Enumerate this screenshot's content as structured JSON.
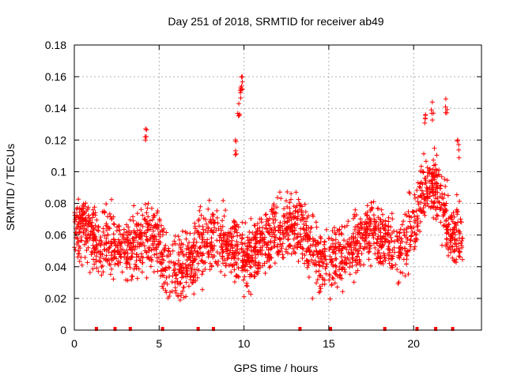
{
  "chart_data": {
    "type": "scatter",
    "title": "Day 251 of 2018, SRMTID for receiver ab49",
    "xlabel": "GPS time / hours",
    "ylabel": "SRMTID / TECUs",
    "xlim": [
      0,
      24.0
    ],
    "ylim": [
      0,
      0.18
    ],
    "grid": true,
    "marker": "+",
    "color": "#ff0000",
    "x_ticks": [
      0,
      5,
      10,
      15,
      20
    ],
    "x_tick_labels": [
      "0",
      "5",
      "10",
      "15",
      "20"
    ],
    "y_ticks": [
      0,
      0.02,
      0.04,
      0.06,
      0.08,
      0.1,
      0.12,
      0.14,
      0.16,
      0.18
    ],
    "y_tick_labels": [
      "0",
      "0.02",
      "0.04",
      "0.06",
      "0.08",
      "0.1",
      "0.12",
      "0.14",
      "0.16",
      "0.18"
    ],
    "series": [
      {
        "name": "SRMTID",
        "x_range": [
          0,
          22.9
        ],
        "trend": [
          {
            "x": 0.0,
            "y": 0.062
          },
          {
            "x": 0.5,
            "y": 0.068
          },
          {
            "x": 1.0,
            "y": 0.06
          },
          {
            "x": 1.5,
            "y": 0.052
          },
          {
            "x": 2.0,
            "y": 0.056
          },
          {
            "x": 2.5,
            "y": 0.055
          },
          {
            "x": 3.0,
            "y": 0.05
          },
          {
            "x": 3.5,
            "y": 0.052
          },
          {
            "x": 4.0,
            "y": 0.058
          },
          {
            "x": 4.5,
            "y": 0.06
          },
          {
            "x": 5.0,
            "y": 0.052
          },
          {
            "x": 5.5,
            "y": 0.04
          },
          {
            "x": 6.0,
            "y": 0.036
          },
          {
            "x": 6.5,
            "y": 0.04
          },
          {
            "x": 7.0,
            "y": 0.046
          },
          {
            "x": 7.5,
            "y": 0.054
          },
          {
            "x": 8.0,
            "y": 0.058
          },
          {
            "x": 8.5,
            "y": 0.056
          },
          {
            "x": 9.0,
            "y": 0.054
          },
          {
            "x": 9.5,
            "y": 0.052
          },
          {
            "x": 10.0,
            "y": 0.044
          },
          {
            "x": 10.5,
            "y": 0.048
          },
          {
            "x": 11.0,
            "y": 0.054
          },
          {
            "x": 11.5,
            "y": 0.058
          },
          {
            "x": 12.0,
            "y": 0.06
          },
          {
            "x": 12.5,
            "y": 0.064
          },
          {
            "x": 13.0,
            "y": 0.066
          },
          {
            "x": 13.5,
            "y": 0.062
          },
          {
            "x": 14.0,
            "y": 0.05
          },
          {
            "x": 14.5,
            "y": 0.044
          },
          {
            "x": 15.0,
            "y": 0.046
          },
          {
            "x": 15.5,
            "y": 0.05
          },
          {
            "x": 16.0,
            "y": 0.046
          },
          {
            "x": 16.5,
            "y": 0.054
          },
          {
            "x": 17.0,
            "y": 0.06
          },
          {
            "x": 17.5,
            "y": 0.064
          },
          {
            "x": 18.0,
            "y": 0.062
          },
          {
            "x": 18.5,
            "y": 0.056
          },
          {
            "x": 19.0,
            "y": 0.05
          },
          {
            "x": 19.5,
            "y": 0.054
          },
          {
            "x": 20.0,
            "y": 0.068
          },
          {
            "x": 20.5,
            "y": 0.085
          },
          {
            "x": 21.0,
            "y": 0.094
          },
          {
            "x": 21.5,
            "y": 0.088
          },
          {
            "x": 22.0,
            "y": 0.066
          },
          {
            "x": 22.5,
            "y": 0.06
          },
          {
            "x": 22.9,
            "y": 0.058
          }
        ],
        "spread": 0.014,
        "peaks": [
          {
            "x": 4.2,
            "y": 0.127
          },
          {
            "x": 9.7,
            "y": 0.143
          },
          {
            "x": 9.8,
            "y": 0.153
          },
          {
            "x": 9.9,
            "y": 0.16
          },
          {
            "x": 21.1,
            "y": 0.144
          },
          {
            "x": 21.9,
            "y": 0.146
          },
          {
            "x": 22.6,
            "y": 0.12
          },
          {
            "x": 20.7,
            "y": 0.136
          },
          {
            "x": 9.5,
            "y": 0.12
          }
        ],
        "zero_markers_x": [
          1.3,
          2.4,
          3.3,
          5.2,
          7.3,
          8.2,
          13.3,
          15.1,
          18.3,
          20.2,
          21.3,
          22.3
        ]
      }
    ]
  }
}
